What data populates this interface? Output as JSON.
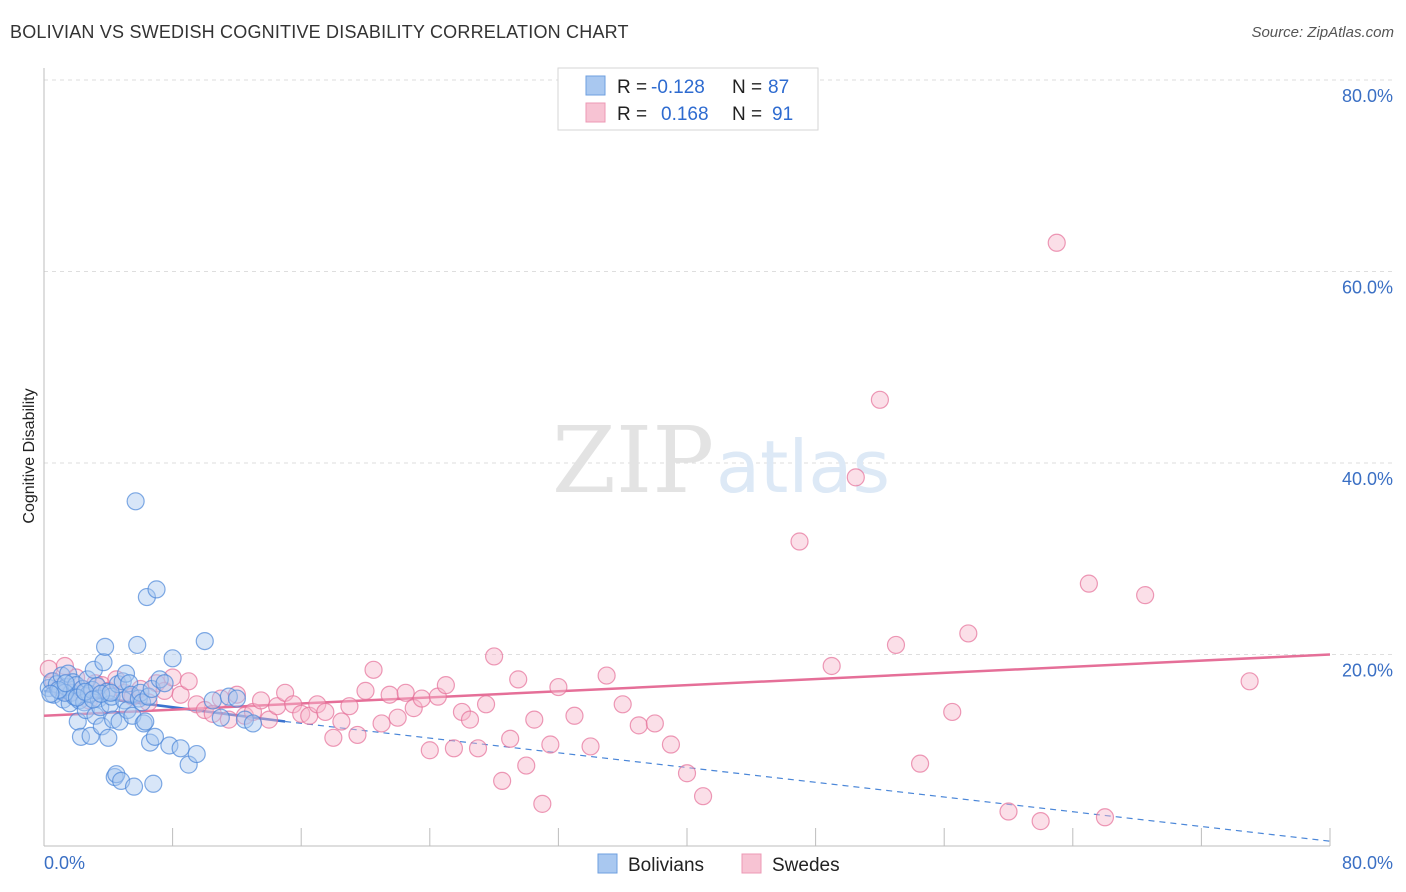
{
  "header": {
    "title": "BOLIVIAN VS SWEDISH COGNITIVE DISABILITY CORRELATION CHART",
    "source": "Source: ZipAtlas.com"
  },
  "watermark": {
    "zip": "ZIP",
    "atlas": "atlas"
  },
  "legend_top": {
    "rows": [
      {
        "r_label": "R =",
        "r_value": "-0.128",
        "n_label": "N =",
        "n_value": "87",
        "color": "#a9c8f0"
      },
      {
        "r_label": "R =",
        "r_value": "0.168",
        "n_label": "N =",
        "n_value": "91",
        "color": "#f7b9cc"
      }
    ]
  },
  "legend_bottom": {
    "items": [
      "Bolivians",
      "Swedes"
    ]
  },
  "chart_data": {
    "type": "scatter",
    "title": "BOLIVIAN VS SWEDISH COGNITIVE DISABILITY CORRELATION CHART",
    "xlabel": "",
    "ylabel": "Cognitive Disability",
    "xlim": [
      0,
      80
    ],
    "ylim": [
      0,
      80
    ],
    "x_tick_labels": [
      "0.0%",
      "80.0%"
    ],
    "y_ticks": [
      20,
      40,
      60,
      80
    ],
    "y_tick_labels": [
      "20.0%",
      "40.0%",
      "60.0%",
      "80.0%"
    ],
    "grid": true,
    "legend_placement": "top-center",
    "series": [
      {
        "name": "Bolivians",
        "color": "#4a86d8",
        "fill": "#a9c8f0",
        "trend": {
          "x0": 0,
          "y0": 16.2,
          "x1": 15,
          "y1": 13.0,
          "dashed_to_x": 80,
          "dashed_to_y": 0.5
        },
        "points": [
          [
            0.3,
            16.5
          ],
          [
            0.5,
            17.2
          ],
          [
            0.6,
            15.8
          ],
          [
            0.8,
            16.9
          ],
          [
            1.0,
            16.2
          ],
          [
            1.1,
            17.8
          ],
          [
            1.2,
            15.3
          ],
          [
            1.4,
            16.6
          ],
          [
            1.5,
            18.0
          ],
          [
            1.6,
            14.9
          ],
          [
            1.7,
            16.0
          ],
          [
            1.8,
            17.1
          ],
          [
            1.9,
            15.6
          ],
          [
            2.0,
            16.8
          ],
          [
            2.1,
            13.0
          ],
          [
            2.2,
            15.2
          ],
          [
            2.3,
            11.4
          ],
          [
            2.4,
            16.4
          ],
          [
            2.5,
            15.0
          ],
          [
            2.6,
            14.2
          ],
          [
            2.7,
            17.4
          ],
          [
            2.8,
            15.9
          ],
          [
            2.9,
            11.5
          ],
          [
            3.0,
            16.3
          ],
          [
            3.1,
            18.4
          ],
          [
            3.2,
            13.6
          ],
          [
            3.3,
            16.7
          ],
          [
            3.4,
            15.4
          ],
          [
            3.5,
            14.5
          ],
          [
            3.6,
            12.5
          ],
          [
            3.7,
            19.2
          ],
          [
            3.8,
            20.8
          ],
          [
            3.9,
            16.1
          ],
          [
            4.0,
            11.3
          ],
          [
            4.1,
            14.8
          ],
          [
            4.2,
            15.6
          ],
          [
            4.3,
            13.2
          ],
          [
            4.4,
            7.2
          ],
          [
            4.5,
            7.5
          ],
          [
            4.6,
            16.9
          ],
          [
            4.7,
            13.0
          ],
          [
            4.8,
            6.8
          ],
          [
            4.9,
            17.2
          ],
          [
            5.0,
            15.2
          ],
          [
            5.1,
            18.0
          ],
          [
            5.2,
            14.2
          ],
          [
            5.3,
            17.0
          ],
          [
            5.4,
            15.8
          ],
          [
            5.5,
            13.6
          ],
          [
            5.6,
            6.2
          ],
          [
            5.7,
            36.0
          ],
          [
            5.8,
            21.0
          ],
          [
            5.9,
            15.4
          ],
          [
            6.0,
            16.0
          ],
          [
            6.1,
            15.0
          ],
          [
            6.2,
            12.8
          ],
          [
            6.3,
            13.0
          ],
          [
            6.4,
            26.0
          ],
          [
            6.5,
            15.6
          ],
          [
            6.6,
            10.8
          ],
          [
            6.7,
            16.4
          ],
          [
            6.8,
            6.5
          ],
          [
            6.9,
            11.4
          ],
          [
            7.0,
            26.8
          ],
          [
            7.2,
            17.4
          ],
          [
            7.5,
            17.0
          ],
          [
            7.8,
            10.5
          ],
          [
            8.0,
            19.6
          ],
          [
            8.5,
            10.2
          ],
          [
            9.0,
            8.5
          ],
          [
            9.5,
            9.6
          ],
          [
            10.0,
            21.4
          ],
          [
            10.5,
            15.2
          ],
          [
            11.0,
            13.4
          ],
          [
            11.5,
            15.6
          ],
          [
            12.0,
            15.4
          ],
          [
            12.5,
            13.2
          ],
          [
            13.0,
            12.8
          ],
          [
            1.3,
            16.0
          ],
          [
            2.05,
            15.5
          ],
          [
            2.55,
            16.1
          ],
          [
            3.05,
            15.3
          ],
          [
            3.55,
            15.9
          ],
          [
            0.9,
            16.3
          ],
          [
            1.35,
            17.0
          ],
          [
            4.15,
            16.0
          ],
          [
            0.4,
            15.9
          ]
        ]
      },
      {
        "name": "Swedes",
        "color": "#e56f98",
        "fill": "#f7b9cc",
        "trend": {
          "x0": 0,
          "y0": 13.6,
          "x1": 80,
          "y1": 20.0
        },
        "points": [
          [
            0.3,
            18.5
          ],
          [
            0.6,
            17.2
          ],
          [
            1.0,
            16.6
          ],
          [
            1.3,
            18.8
          ],
          [
            1.6,
            16.0
          ],
          [
            2.0,
            17.6
          ],
          [
            2.4,
            16.4
          ],
          [
            2.8,
            15.2
          ],
          [
            3.2,
            17.0
          ],
          [
            3.6,
            16.8
          ],
          [
            4.0,
            16.2
          ],
          [
            4.5,
            17.4
          ],
          [
            5.0,
            16.0
          ],
          [
            5.5,
            15.6
          ],
          [
            6.0,
            16.4
          ],
          [
            6.5,
            15.0
          ],
          [
            7.0,
            17.0
          ],
          [
            7.5,
            16.2
          ],
          [
            8.0,
            17.6
          ],
          [
            8.5,
            15.8
          ],
          [
            9.0,
            17.2
          ],
          [
            9.5,
            14.8
          ],
          [
            10.0,
            14.2
          ],
          [
            10.5,
            13.8
          ],
          [
            11.0,
            15.4
          ],
          [
            11.5,
            13.2
          ],
          [
            12.0,
            15.8
          ],
          [
            12.5,
            13.6
          ],
          [
            13.0,
            14.0
          ],
          [
            13.5,
            15.2
          ],
          [
            14.0,
            13.2
          ],
          [
            14.5,
            14.6
          ],
          [
            15.0,
            16.0
          ],
          [
            15.5,
            14.8
          ],
          [
            16.0,
            13.8
          ],
          [
            16.5,
            13.6
          ],
          [
            17.0,
            14.8
          ],
          [
            17.5,
            14.0
          ],
          [
            18.0,
            11.3
          ],
          [
            18.5,
            13.0
          ],
          [
            19.0,
            14.6
          ],
          [
            19.5,
            11.6
          ],
          [
            20.0,
            16.2
          ],
          [
            20.5,
            18.4
          ],
          [
            21.0,
            12.8
          ],
          [
            21.5,
            15.8
          ],
          [
            22.0,
            13.4
          ],
          [
            22.5,
            16.0
          ],
          [
            23.0,
            14.4
          ],
          [
            23.5,
            15.4
          ],
          [
            24.0,
            10.0
          ],
          [
            24.5,
            15.6
          ],
          [
            25.0,
            16.8
          ],
          [
            25.5,
            10.2
          ],
          [
            26.0,
            14.0
          ],
          [
            26.5,
            13.2
          ],
          [
            27.0,
            10.2
          ],
          [
            27.5,
            14.8
          ],
          [
            28.0,
            19.8
          ],
          [
            28.5,
            6.8
          ],
          [
            29.0,
            11.2
          ],
          [
            29.5,
            17.4
          ],
          [
            30.0,
            8.4
          ],
          [
            30.5,
            13.2
          ],
          [
            31.0,
            4.4
          ],
          [
            31.5,
            10.6
          ],
          [
            32.0,
            16.6
          ],
          [
            33.0,
            13.6
          ],
          [
            34.0,
            10.4
          ],
          [
            35.0,
            17.8
          ],
          [
            36.0,
            14.8
          ],
          [
            37.0,
            12.6
          ],
          [
            38.0,
            12.8
          ],
          [
            39.0,
            10.6
          ],
          [
            40.0,
            7.6
          ],
          [
            41.0,
            5.2
          ],
          [
            47.0,
            31.8
          ],
          [
            49.0,
            18.8
          ],
          [
            50.5,
            38.5
          ],
          [
            52.0,
            46.6
          ],
          [
            53.0,
            21.0
          ],
          [
            54.5,
            8.6
          ],
          [
            56.5,
            14.0
          ],
          [
            57.5,
            22.2
          ],
          [
            60.0,
            3.6
          ],
          [
            62.0,
            2.6
          ],
          [
            63.0,
            63.0
          ],
          [
            65.0,
            27.4
          ],
          [
            66.0,
            3.0
          ],
          [
            68.5,
            26.2
          ],
          [
            75.0,
            17.2
          ]
        ]
      }
    ]
  }
}
